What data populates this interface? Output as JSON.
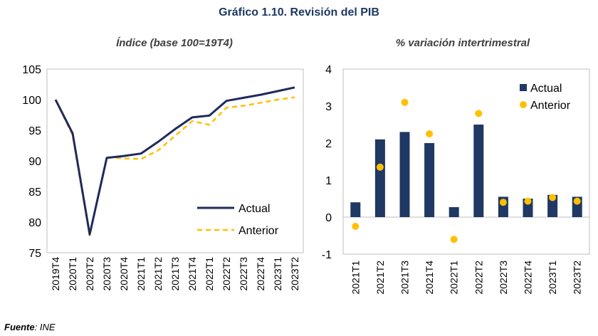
{
  "title": "Gráfico 1.10. Revisión del PIB",
  "source_label": "Fuente",
  "source_text": ": INE",
  "chart_data": [
    {
      "type": "line",
      "title": "Índice (base 100=19T4)",
      "categories": [
        "2019T4",
        "2020T1",
        "2020T2",
        "2020T3",
        "2020T4",
        "2021T1",
        "2021T2",
        "2021T3",
        "2021T4",
        "2022T1",
        "2022T2",
        "2022T3",
        "2022T4",
        "2023T1",
        "2023T2"
      ],
      "ylim": [
        75,
        105
      ],
      "yticks": [
        75,
        80,
        85,
        90,
        95,
        100,
        105
      ],
      "legend_position": "bottom-right",
      "series": [
        {
          "name": "Actual",
          "color": "#1f2a5c",
          "style": "solid",
          "values": [
            100,
            94.5,
            78.0,
            90.5,
            90.8,
            91.2,
            93.1,
            95.2,
            97.1,
            97.4,
            99.8,
            100.3,
            100.8,
            101.4,
            102.0
          ]
        },
        {
          "name": "Anterior",
          "color": "#ffc000",
          "style": "dashed",
          "values": [
            100,
            94.2,
            77.8,
            90.6,
            90.4,
            90.3,
            91.7,
            94.1,
            96.5,
            95.9,
            98.7,
            99.0,
            99.5,
            100.0,
            100.4
          ]
        }
      ]
    },
    {
      "type": "bar",
      "title": "% variación intertrimestral",
      "categories": [
        "2021T1",
        "2021T2",
        "2021T3",
        "2021T4",
        "2022T1",
        "2022T2",
        "2022T3",
        "2022T4",
        "2023T1",
        "2023T2"
      ],
      "ylim": [
        -1,
        4
      ],
      "yticks": [
        -1,
        0,
        1,
        2,
        3,
        4
      ],
      "legend_position": "top-right",
      "series": [
        {
          "name": "Actual",
          "kind": "bar",
          "color": "#1f3864",
          "values": [
            0.4,
            2.1,
            2.3,
            2.0,
            0.27,
            2.5,
            0.55,
            0.5,
            0.6,
            0.55
          ]
        },
        {
          "name": "Anterior",
          "kind": "dot",
          "color": "#ffc000",
          "values": [
            -0.25,
            1.35,
            3.1,
            2.25,
            -0.6,
            2.8,
            0.4,
            0.43,
            0.53,
            0.43
          ]
        }
      ]
    }
  ]
}
